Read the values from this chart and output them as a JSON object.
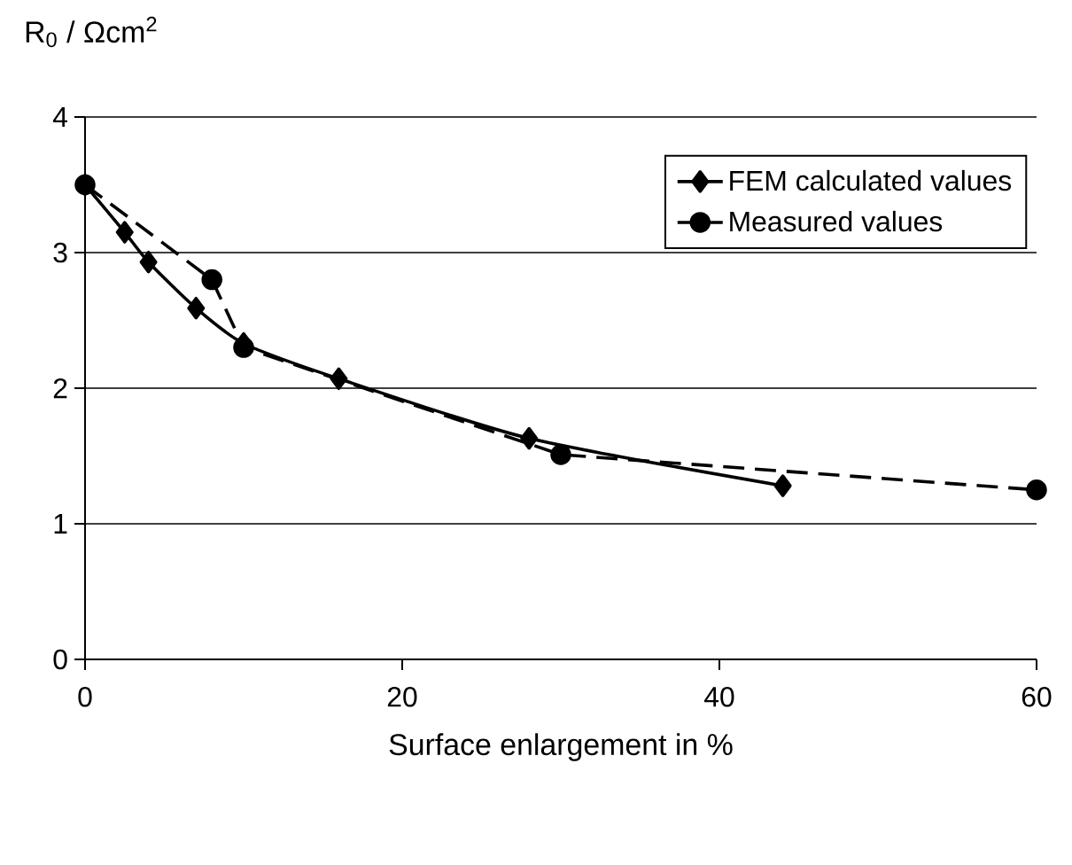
{
  "chart_data": {
    "type": "line",
    "ylabel": "R$_{0}$ / Ωcm$^{2}$",
    "xlabel": "Surface enlargement in %",
    "xlim": [
      0,
      60
    ],
    "xticks": [
      0,
      20,
      40,
      60
    ],
    "ylim": [
      0,
      4
    ],
    "yticks": [
      0,
      1,
      2,
      3,
      4
    ],
    "grid": "y",
    "legend": "top right",
    "series": [
      {
        "name": "FEM calculated values",
        "color": "#000000",
        "marker": "diamond",
        "line_style": "solid",
        "x": [
          0,
          2.5,
          4,
          7,
          10,
          16,
          28,
          44
        ],
        "values": [
          3.5,
          3.15,
          2.93,
          2.59,
          2.33,
          2.07,
          1.63,
          1.28
        ]
      },
      {
        "name": "Measured values",
        "color": "#000000",
        "marker": "circle",
        "line_style": "dashed",
        "x": [
          0,
          8,
          10,
          30,
          60
        ],
        "values": [
          3.5,
          2.8,
          2.3,
          1.51,
          1.25
        ]
      }
    ]
  }
}
